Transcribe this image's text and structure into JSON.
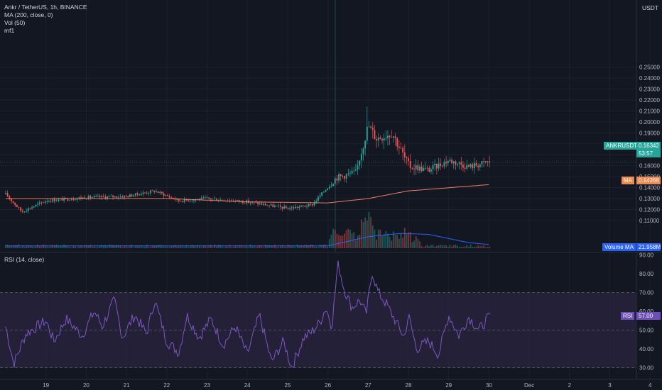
{
  "header": {
    "symbol_line": "Ankr / TetherUS, 1h, BINANCE",
    "studies": [
      "MA (200, close, 0)",
      "Vol (50)",
      "mf1"
    ],
    "rsi_label": "RSI (14, close)",
    "currency": "USDT"
  },
  "tags": {
    "symbol": "ANKRUSDT",
    "price": "0.16342",
    "countdown": "53:57",
    "ma_name": "MA",
    "ma_value": "0.14266",
    "vol_name": "Volume MA",
    "vol_value": "21.958M",
    "rsi_name": "RSI",
    "rsi_value": "57.00"
  },
  "colors": {
    "background": "#131722",
    "up": "#26a69a",
    "down": "#ef5350",
    "ma": "#ee7e5f",
    "volume_ma": "#2962ff",
    "rsi": "#7e57c2",
    "rsi_band": "#2a2440",
    "price_tag": "#26a69a",
    "ma_tag": "#f0894f",
    "vol_tag": "#2962ff",
    "rsi_tag": "#6e4fba"
  },
  "chart_data": [
    {
      "type": "candlestick",
      "title": "Ankr / TetherUS, 1h, BINANCE",
      "x_ticks": [
        "19",
        "20",
        "21",
        "22",
        "23",
        "24",
        "25",
        "26",
        "27",
        "28",
        "29",
        "30",
        "Dec",
        "2",
        "3",
        "4"
      ],
      "y_ticks": [
        "0.25000",
        "0.24000",
        "0.23000",
        "0.22000",
        "0.21000",
        "0.20000",
        "0.19000",
        "0.18000",
        "0.17000",
        "0.16000",
        "0.15000",
        "0.14000",
        "0.13000",
        "0.12000",
        "0.11000"
      ],
      "ylim": [
        0.105,
        0.255
      ],
      "key_prices": [
        {
          "day": 18.0,
          "price": 0.134
        },
        {
          "day": 18.4,
          "price": 0.118
        },
        {
          "day": 19.0,
          "price": 0.128
        },
        {
          "day": 20.0,
          "price": 0.131
        },
        {
          "day": 21.0,
          "price": 0.132
        },
        {
          "day": 21.7,
          "price": 0.137
        },
        {
          "day": 22.3,
          "price": 0.128
        },
        {
          "day": 23.0,
          "price": 0.13
        },
        {
          "day": 24.0,
          "price": 0.127
        },
        {
          "day": 25.0,
          "price": 0.121
        },
        {
          "day": 25.6,
          "price": 0.124
        },
        {
          "day": 26.2,
          "price": 0.149
        },
        {
          "day": 26.7,
          "price": 0.154
        },
        {
          "day": 27.0,
          "price": 0.197
        },
        {
          "day": 27.2,
          "price": 0.185
        },
        {
          "day": 27.6,
          "price": 0.19
        },
        {
          "day": 28.0,
          "price": 0.16
        },
        {
          "day": 28.5,
          "price": 0.156
        },
        {
          "day": 29.0,
          "price": 0.165
        },
        {
          "day": 29.5,
          "price": 0.159
        },
        {
          "day": 30.0,
          "price": 0.1634
        }
      ],
      "moving_average": [
        {
          "day": 18.0,
          "value": 0.13
        },
        {
          "day": 22.0,
          "value": 0.13
        },
        {
          "day": 24.0,
          "value": 0.127
        },
        {
          "day": 26.0,
          "value": 0.126
        },
        {
          "day": 27.0,
          "value": 0.13
        },
        {
          "day": 28.0,
          "value": 0.137
        },
        {
          "day": 30.0,
          "value": 0.1427
        }
      ],
      "last_price": 0.16342,
      "ma_value": 0.14266
    },
    {
      "type": "bar",
      "title": "Vol (50)",
      "volume_spikes": [
        {
          "day": 26.2,
          "height": 0.45
        },
        {
          "day": 26.5,
          "height": 0.55
        },
        {
          "day": 26.9,
          "height": 0.9
        },
        {
          "day": 27.05,
          "height": 1.0
        },
        {
          "day": 27.4,
          "height": 0.5
        },
        {
          "day": 27.8,
          "height": 0.35
        }
      ],
      "volume_ma": [
        {
          "day": 18.0,
          "height": 0.05
        },
        {
          "day": 26.0,
          "height": 0.05
        },
        {
          "day": 27.0,
          "height": 0.25
        },
        {
          "day": 27.8,
          "height": 0.32
        },
        {
          "day": 28.5,
          "height": 0.3
        },
        {
          "day": 29.5,
          "height": 0.12
        },
        {
          "day": 30.0,
          "height": 0.08
        }
      ],
      "volume_ma_value": "21.958M"
    },
    {
      "type": "line",
      "title": "RSI (14, close)",
      "y_ticks": [
        "90.00",
        "80.00",
        "70.00",
        "60.00",
        "50.00",
        "40.00",
        "30.00"
      ],
      "ylim": [
        28,
        91
      ],
      "bands": [
        30,
        50,
        70
      ],
      "points": [
        {
          "day": 18.0,
          "value": 52
        },
        {
          "day": 18.2,
          "value": 32
        },
        {
          "day": 18.5,
          "value": 48
        },
        {
          "day": 19.0,
          "value": 55
        },
        {
          "day": 19.2,
          "value": 44
        },
        {
          "day": 19.5,
          "value": 56
        },
        {
          "day": 19.9,
          "value": 47
        },
        {
          "day": 20.2,
          "value": 60
        },
        {
          "day": 20.4,
          "value": 52
        },
        {
          "day": 20.7,
          "value": 66
        },
        {
          "day": 20.9,
          "value": 46
        },
        {
          "day": 21.2,
          "value": 58
        },
        {
          "day": 21.5,
          "value": 48
        },
        {
          "day": 21.7,
          "value": 66
        },
        {
          "day": 22.0,
          "value": 44
        },
        {
          "day": 22.3,
          "value": 38
        },
        {
          "day": 22.5,
          "value": 58
        },
        {
          "day": 22.8,
          "value": 46
        },
        {
          "day": 23.1,
          "value": 56
        },
        {
          "day": 23.4,
          "value": 42
        },
        {
          "day": 23.7,
          "value": 52
        },
        {
          "day": 24.0,
          "value": 37
        },
        {
          "day": 24.3,
          "value": 58
        },
        {
          "day": 24.6,
          "value": 33
        },
        {
          "day": 24.9,
          "value": 44
        },
        {
          "day": 25.1,
          "value": 30
        },
        {
          "day": 25.4,
          "value": 46
        },
        {
          "day": 25.6,
          "value": 49
        },
        {
          "day": 25.8,
          "value": 54
        },
        {
          "day": 25.95,
          "value": 62
        },
        {
          "day": 26.1,
          "value": 52
        },
        {
          "day": 26.25,
          "value": 86
        },
        {
          "day": 26.4,
          "value": 72
        },
        {
          "day": 26.6,
          "value": 62
        },
        {
          "day": 26.8,
          "value": 66
        },
        {
          "day": 26.95,
          "value": 58
        },
        {
          "day": 27.1,
          "value": 81
        },
        {
          "day": 27.25,
          "value": 70
        },
        {
          "day": 27.45,
          "value": 64
        },
        {
          "day": 27.7,
          "value": 54
        },
        {
          "day": 27.9,
          "value": 46
        },
        {
          "day": 28.0,
          "value": 58
        },
        {
          "day": 28.2,
          "value": 40
        },
        {
          "day": 28.5,
          "value": 44
        },
        {
          "day": 28.75,
          "value": 37
        },
        {
          "day": 29.0,
          "value": 58
        },
        {
          "day": 29.25,
          "value": 47
        },
        {
          "day": 29.5,
          "value": 57
        },
        {
          "day": 29.75,
          "value": 50
        },
        {
          "day": 30.0,
          "value": 57
        }
      ],
      "last_value": 57.0
    }
  ]
}
